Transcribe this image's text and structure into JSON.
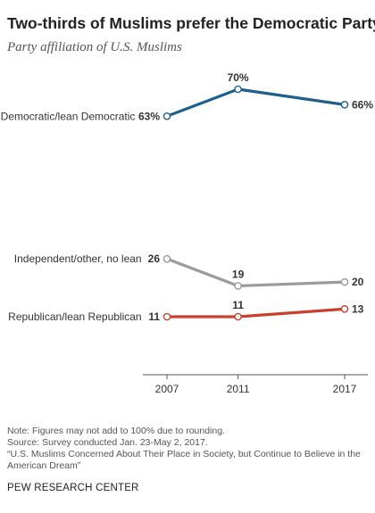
{
  "header": {
    "title": "Two-thirds of Muslims prefer the Democratic Party",
    "subtitle": "Party affiliation of U.S. Muslims"
  },
  "chart_data": {
    "type": "line",
    "x": [
      "2007",
      "2011",
      "2017"
    ],
    "x_numeric": [
      2007,
      2011,
      2017
    ],
    "ylim": [
      0,
      75
    ],
    "grid": false,
    "legend": "inline-left",
    "series": [
      {
        "name": "Democratic/lean Democratic",
        "values": [
          63,
          70,
          66
        ],
        "labels": [
          "63%",
          "70%",
          "66%"
        ],
        "color": "#1f5f8b"
      },
      {
        "name": "Independent/other, no lean",
        "values": [
          26,
          19,
          20
        ],
        "labels": [
          "26",
          "19",
          "20"
        ],
        "color": "#9b9b9b"
      },
      {
        "name": "Republican/lean Republican",
        "values": [
          11,
          11,
          13
        ],
        "labels": [
          "11",
          "11",
          "13"
        ],
        "color": "#c8412f"
      }
    ]
  },
  "footer": {
    "note": "Note: Figures may not add to 100% due to rounding.",
    "source": "Source: Survey conducted Jan. 23-May 2, 2017.",
    "report": "“U.S. Muslims Concerned About Their Place in Society, but Continue to Believe in the American Dream”",
    "org": "PEW RESEARCH CENTER"
  }
}
